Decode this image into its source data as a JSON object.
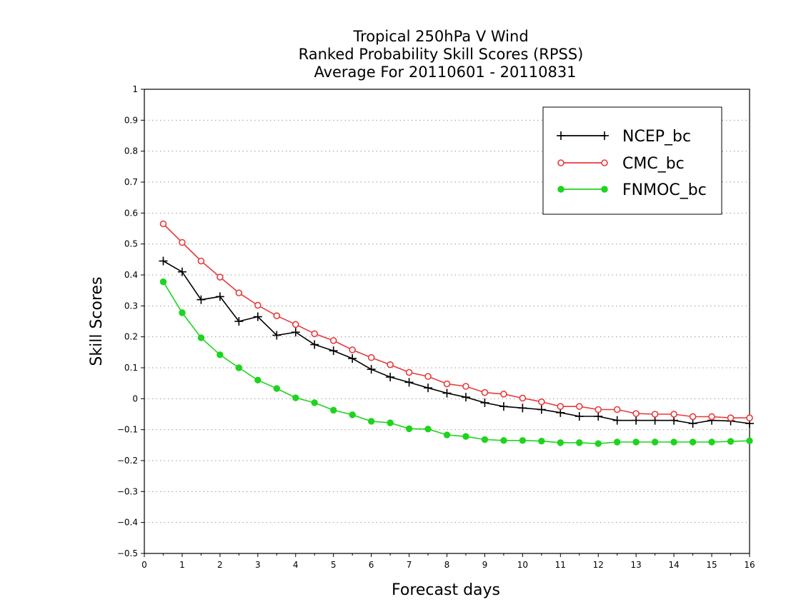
{
  "chart_data": {
    "type": "line",
    "title_lines": [
      "Tropical 250hPa V Wind",
      "Ranked Probability Skill Scores (RPSS)",
      "Average For 20110601 - 20110831"
    ],
    "xlabel": "Forecast days",
    "ylabel": "Skill Scores",
    "xlim": [
      0,
      16
    ],
    "ylim": [
      -0.5,
      1
    ],
    "x_ticks": [
      "0",
      "1",
      "2",
      "3",
      "4",
      "5",
      "6",
      "7",
      "8",
      "9",
      "10",
      "11",
      "12",
      "13",
      "14",
      "15",
      "16"
    ],
    "y_ticks": [
      "−0.5",
      "−0.4",
      "−0.3",
      "−0.2",
      "−0.1",
      "0",
      "0.1",
      "0.2",
      "0.3",
      "0.4",
      "0.5",
      "0.6",
      "0.7",
      "0.8",
      "0.9",
      "1"
    ],
    "grid": "horizontal dotted",
    "legend_position": "top-right",
    "x": [
      0.5,
      1,
      1.5,
      2,
      2.5,
      3,
      3.5,
      4,
      4.5,
      5,
      5.5,
      6,
      6.5,
      7,
      7.5,
      8,
      8.5,
      9,
      9.5,
      10,
      10.5,
      11,
      11.5,
      12,
      12.5,
      13,
      13.5,
      14,
      14.5,
      15,
      15.5,
      16
    ],
    "series": [
      {
        "name": "NCEP_bc",
        "color": "#000000",
        "marker": "plus",
        "values": [
          0.445,
          0.41,
          0.32,
          0.33,
          0.25,
          0.265,
          0.205,
          0.215,
          0.175,
          0.155,
          0.13,
          0.095,
          0.07,
          0.053,
          0.035,
          0.018,
          0.005,
          -0.013,
          -0.025,
          -0.03,
          -0.035,
          -0.045,
          -0.057,
          -0.057,
          -0.07,
          -0.07,
          -0.07,
          -0.07,
          -0.08,
          -0.07,
          -0.072,
          -0.08
        ]
      },
      {
        "name": "CMC_bc",
        "color": "#e8393a",
        "marker": "open-circle",
        "values": [
          0.565,
          0.505,
          0.445,
          0.393,
          0.342,
          0.302,
          0.268,
          0.24,
          0.21,
          0.188,
          0.158,
          0.133,
          0.11,
          0.085,
          0.072,
          0.048,
          0.04,
          0.02,
          0.015,
          0.002,
          -0.01,
          -0.025,
          -0.025,
          -0.035,
          -0.035,
          -0.048,
          -0.05,
          -0.05,
          -0.058,
          -0.058,
          -0.062,
          -0.062
        ]
      },
      {
        "name": "FNMOC_bc",
        "color": "#1ed41e",
        "marker": "filled-circle",
        "values": [
          0.378,
          0.278,
          0.197,
          0.142,
          0.1,
          0.06,
          0.033,
          0.003,
          -0.013,
          -0.037,
          -0.052,
          -0.073,
          -0.078,
          -0.097,
          -0.098,
          -0.117,
          -0.122,
          -0.132,
          -0.135,
          -0.135,
          -0.137,
          -0.142,
          -0.142,
          -0.145,
          -0.14,
          -0.14,
          -0.14,
          -0.14,
          -0.14,
          -0.14,
          -0.138,
          -0.136
        ]
      }
    ]
  }
}
